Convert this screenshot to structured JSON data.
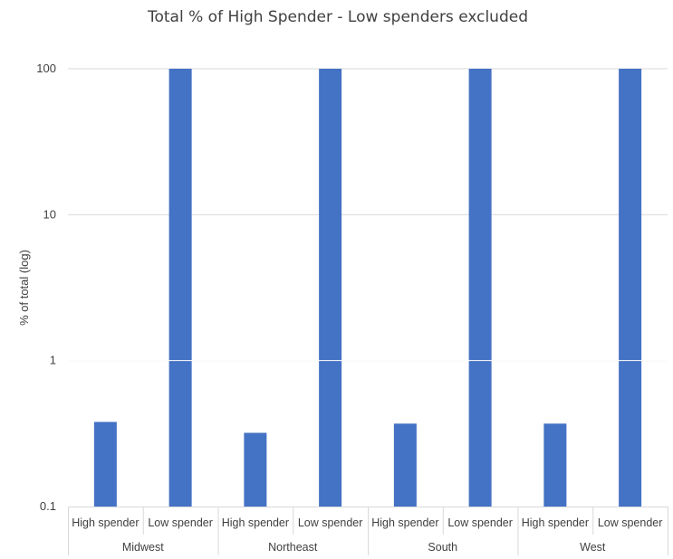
{
  "chart_data": {
    "type": "bar",
    "title": "Total % of High Spender - Low spenders excluded",
    "xlabel": "",
    "ylabel": "% of total (log)",
    "yscale": "log",
    "ylim": [
      0.1,
      100
    ],
    "yticks": [
      "0.1",
      "1",
      "10",
      "100"
    ],
    "grid": true,
    "legend": "none",
    "bar_color": "#4472C4",
    "groups": [
      "Midwest",
      "Northeast",
      "South",
      "West"
    ],
    "categories": [
      "High spender",
      "Low spender"
    ],
    "series": [
      {
        "values": [
          [
            0.38,
            100
          ],
          [
            0.32,
            100
          ],
          [
            0.37,
            100
          ],
          [
            0.37,
            100
          ]
        ]
      }
    ]
  }
}
